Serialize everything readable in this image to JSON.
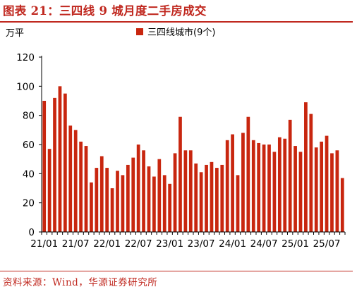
{
  "header": {
    "title": "图表 21：三四线 9 城月度二手房成交"
  },
  "footer": {
    "source": "资料来源：Wind，华源证券研究所"
  },
  "colors": {
    "accent": "#c0281f",
    "bar": "#c8260f",
    "axis": "#000000"
  },
  "chart_data": {
    "type": "bar",
    "ylabel": "万平",
    "ylim": [
      0,
      120
    ],
    "yticks": [
      0,
      20,
      40,
      60,
      80,
      100,
      120
    ],
    "grid": false,
    "legend_position": "top-center",
    "x_tick_labels": [
      "21/01",
      "21/07",
      "22/01",
      "22/07",
      "23/01",
      "23/07",
      "24/01",
      "24/07",
      "25/01",
      "25/07"
    ],
    "x_tick_every": 6,
    "start_month": "21/01",
    "series": [
      {
        "name": "三四线城市(9个)",
        "values": [
          90,
          57,
          92,
          100,
          95,
          73,
          70,
          62,
          59,
          34,
          44,
          52,
          44,
          30,
          42,
          39,
          46,
          51,
          60,
          56,
          45,
          38,
          50,
          39,
          33,
          54,
          79,
          56,
          56,
          47,
          41,
          46,
          48,
          44,
          46,
          63,
          67,
          39,
          68,
          79,
          63,
          61,
          60,
          60,
          55,
          65,
          64,
          77,
          59,
          55,
          89,
          81,
          58,
          62,
          66,
          54,
          56,
          37
        ]
      }
    ]
  }
}
